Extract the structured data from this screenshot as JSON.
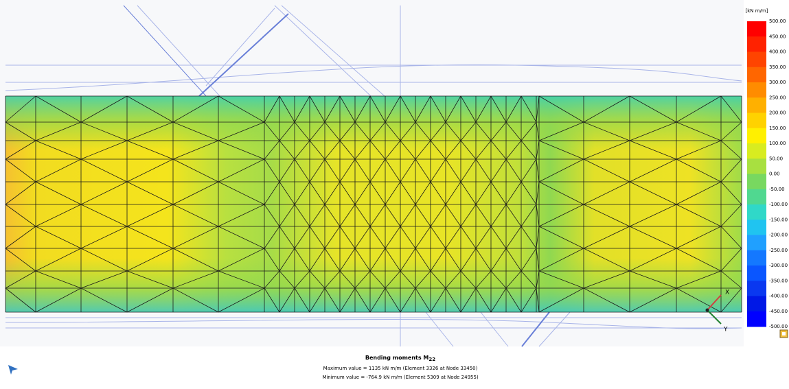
{
  "legend": {
    "unit": "[kN m/m]",
    "labels": [
      "500.00",
      "450.00",
      "400.00",
      "350.00",
      "300.00",
      "250.00",
      "200.00",
      "150.00",
      "100.00",
      "50.00",
      "0.00",
      "-50.00",
      "-100.00",
      "-150.00",
      "-200.00",
      "-250.00",
      "-300.00",
      "-350.00",
      "-400.00",
      "-450.00",
      "-500.00"
    ],
    "colors": [
      "#ff0000",
      "#ff2200",
      "#ff4400",
      "#ff6600",
      "#ff8c00",
      "#ffb000",
      "#ffd200",
      "#fff000",
      "#d8ec20",
      "#a8e040",
      "#78d860",
      "#50d890",
      "#30d8c8",
      "#20c4f0",
      "#20a0ff",
      "#1478ff",
      "#0a56ff",
      "#0a38f0",
      "#0018e6",
      "#0000ff"
    ]
  },
  "axes": {
    "x": "X",
    "y": "Y"
  },
  "caption": {
    "title": {
      "text": "Bending moments M",
      "subscript": "22"
    },
    "max": "Maximum value = 1135 kN m/m (Element 3326 at Node 33450)",
    "min": "Minimum value = -764.9 kN m/m (Element 5309 at Node 24955)"
  }
}
